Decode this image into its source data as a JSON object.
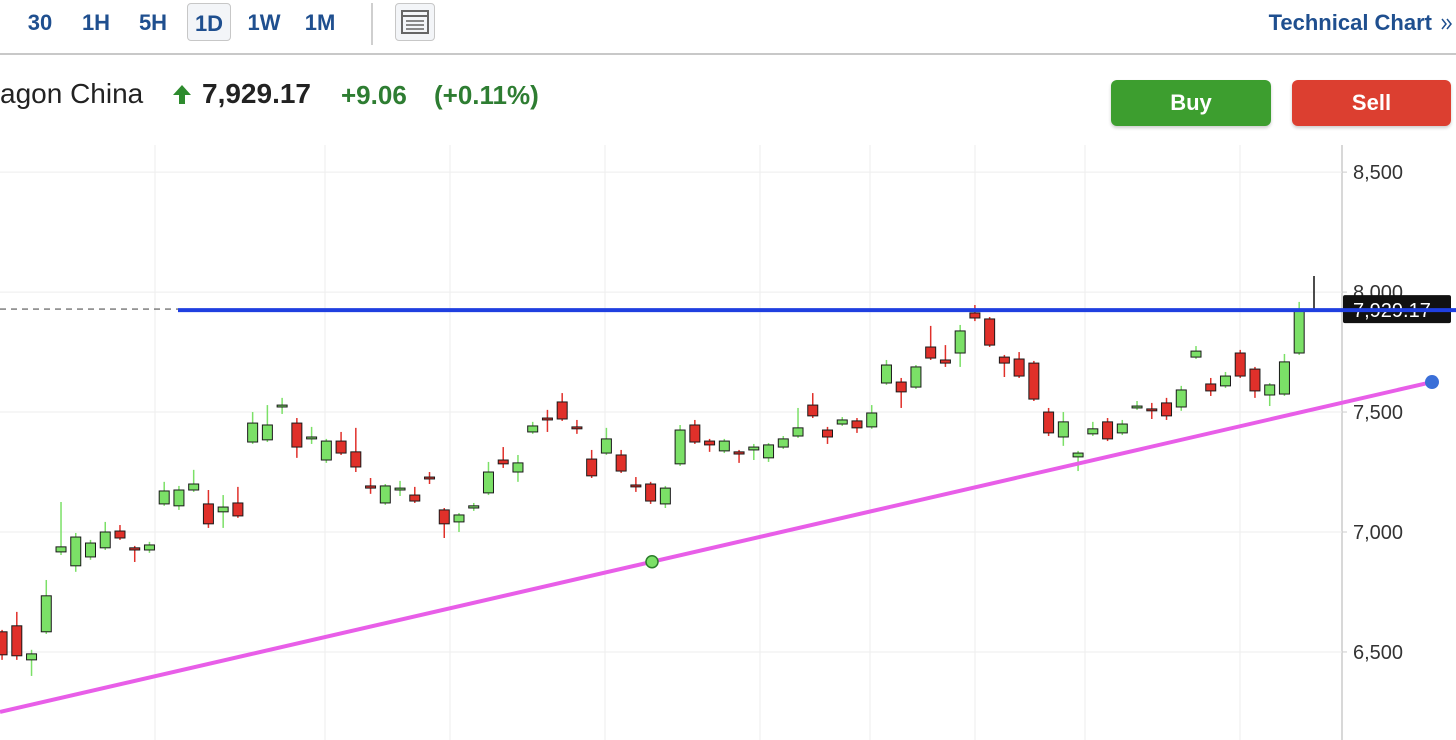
{
  "toolbar": {
    "intervals": [
      "30",
      "1H",
      "5H",
      "1D",
      "1W",
      "1M"
    ],
    "selected": 3,
    "link": "Technical Chart"
  },
  "header": {
    "name": "agon China",
    "price": "7,929.17",
    "change": "+9.06",
    "change_pct": "(+0.11%)"
  },
  "buttons": {
    "buy": "Buy",
    "sell": "Sell"
  },
  "chart_data": {
    "type": "candlestick",
    "ylim": [
      6133,
      8613
    ],
    "yticks": [
      {
        "value": 6500,
        "label": "6,500"
      },
      {
        "value": 7000,
        "label": "7,000"
      },
      {
        "value": 7500,
        "label": "7,500"
      },
      {
        "value": 8000,
        "label": "8,000"
      },
      {
        "value": 8500,
        "label": "8,500"
      }
    ],
    "grid": true,
    "up_color": "#7be067",
    "down_color": "#e0302a",
    "open": [
      6584,
      6609,
      6467,
      6584,
      6917,
      6859,
      6896,
      6934,
      7004,
      6934,
      6925,
      7117,
      7109,
      7175,
      7117,
      7084,
      7121,
      7375,
      7384,
      7521,
      7454,
      7388,
      7300,
      7379,
      7334,
      7192,
      7121,
      7175,
      7154,
      7229,
      7092,
      7042,
      7100,
      7163,
      7300,
      7250,
      7417,
      7475,
      7542,
      7438,
      7304,
      7329,
      7321,
      7196,
      7200,
      7117,
      7284,
      7446,
      7379,
      7338,
      7334,
      7342,
      7309,
      7354,
      7400,
      7529,
      7425,
      7450,
      7463,
      7438,
      7621,
      7625,
      7604,
      7771,
      7717,
      7746,
      7913,
      7888,
      7729,
      7721,
      7704,
      7500,
      7396,
      7313,
      7409,
      7459,
      7413,
      7517,
      7513,
      7538,
      7521,
      7729,
      7617,
      7609,
      7746,
      7679,
      7571,
      7575,
      7746
    ],
    "high": [
      6592,
      6667,
      6509,
      6800,
      7125,
      6996,
      6967,
      7042,
      7029,
      6942,
      6959,
      7209,
      7192,
      7259,
      7175,
      7154,
      7188,
      7500,
      7529,
      7559,
      7475,
      7438,
      7388,
      7417,
      7434,
      7225,
      7200,
      7213,
      7188,
      7250,
      7100,
      7079,
      7121,
      7292,
      7354,
      7321,
      7459,
      7509,
      7579,
      7467,
      7342,
      7434,
      7342,
      7229,
      7209,
      7192,
      7446,
      7467,
      7388,
      7388,
      7342,
      7367,
      7371,
      7400,
      7517,
      7579,
      7438,
      7479,
      7475,
      7529,
      7717,
      7642,
      7696,
      7859,
      7779,
      7863,
      7946,
      7896,
      7738,
      7750,
      7713,
      7517,
      7500,
      7338,
      7459,
      7475,
      7467,
      7546,
      7538,
      7559,
      7609,
      7775,
      7642,
      7667,
      7759,
      7688,
      7621,
      7742,
      7959
    ],
    "low": [
      6467,
      6467,
      6400,
      6575,
      6904,
      6834,
      6884,
      6925,
      6967,
      6875,
      6913,
      7109,
      7092,
      7167,
      7017,
      7017,
      7059,
      7367,
      7375,
      7492,
      7309,
      7367,
      7288,
      7321,
      7250,
      7159,
      7113,
      7150,
      7121,
      7200,
      6975,
      7000,
      7088,
      7154,
      7267,
      7209,
      7409,
      7417,
      7463,
      7409,
      7225,
      7321,
      7246,
      7167,
      7117,
      7100,
      7275,
      7367,
      7334,
      7329,
      7288,
      7300,
      7292,
      7346,
      7392,
      7475,
      7367,
      7442,
      7413,
      7430,
      7613,
      7517,
      7596,
      7717,
      7688,
      7688,
      7879,
      7771,
      7646,
      7642,
      7546,
      7400,
      7359,
      7254,
      7400,
      7379,
      7404,
      7509,
      7471,
      7467,
      7505,
      7721,
      7567,
      7600,
      7642,
      7559,
      7525,
      7567,
      7738
    ],
    "close": [
      6488,
      6484,
      6492,
      6734,
      6938,
      6979,
      6954,
      7000,
      6975,
      6925,
      6946,
      7171,
      7175,
      7200,
      7034,
      7104,
      7067,
      7454,
      7446,
      7529,
      7354,
      7396,
      7379,
      7329,
      7271,
      7183,
      7192,
      7183,
      7129,
      7221,
      7034,
      7071,
      7109,
      7250,
      7284,
      7288,
      7442,
      7467,
      7471,
      7430,
      7234,
      7388,
      7254,
      7188,
      7129,
      7183,
      7425,
      7375,
      7363,
      7379,
      7325,
      7354,
      7363,
      7388,
      7434,
      7484,
      7396,
      7467,
      7434,
      7496,
      7696,
      7584,
      7688,
      7725,
      7704,
      7838,
      7892,
      7779,
      7704,
      7650,
      7554,
      7413,
      7459,
      7329,
      7430,
      7388,
      7450,
      7525,
      7505,
      7484,
      7592,
      7754,
      7588,
      7650,
      7650,
      7588,
      7613,
      7709,
      7929.17
    ],
    "hline": {
      "value": 7925,
      "color": "#1f3fe0"
    },
    "trendline": {
      "values": [
        6250,
        7625
      ],
      "color": "#e85ee8"
    }
  }
}
